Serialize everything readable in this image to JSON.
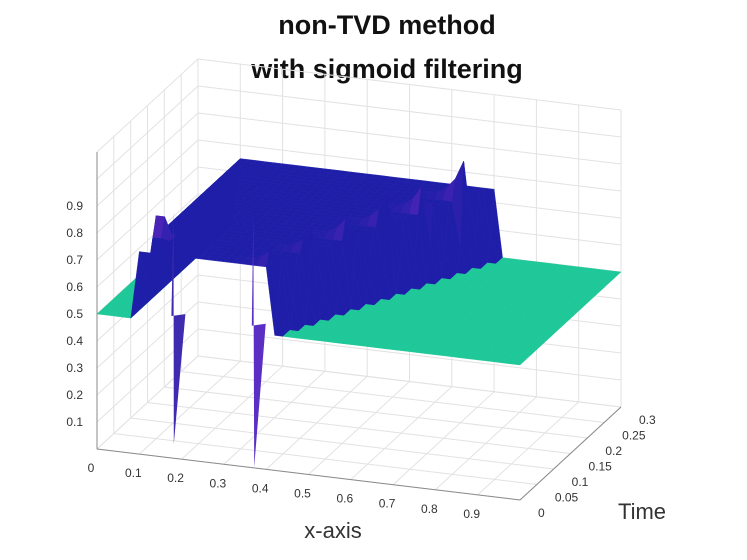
{
  "chart_data": {
    "type": "surface",
    "title": [
      "non-TVD method",
      "with sigmoid filtering"
    ],
    "xlabel": "x-axis",
    "ylabel": "Time",
    "zlabel": "",
    "x_ticks": [
      "0",
      "0.1",
      "0.2",
      "0.3",
      "0.4",
      "0.5",
      "0.6",
      "0.7",
      "0.8",
      "0.9"
    ],
    "y_ticks": [
      "0",
      "0.05",
      "0.1",
      "0.15",
      "0.2",
      "0.25",
      "0.3"
    ],
    "z_ticks": [
      "0.1",
      "0.2",
      "0.3",
      "0.4",
      "0.5",
      "0.6",
      "0.7",
      "0.8",
      "0.9"
    ],
    "xlim": [
      0,
      1
    ],
    "ylim": [
      0,
      0.3
    ],
    "zlim": [
      0,
      1
    ],
    "grid": true,
    "surface": {
      "background_level": 0.5,
      "left_state_level": 0.75,
      "initial_shock_x": 0.4,
      "shock_speed": 1.0,
      "overshoot_peak": 0.93,
      "undershoot_min": 0.05,
      "oscillation_count": 12
    },
    "colors": {
      "flat": "#1fc898",
      "low": "#1e1ea8",
      "high": "#e23ae8"
    }
  }
}
